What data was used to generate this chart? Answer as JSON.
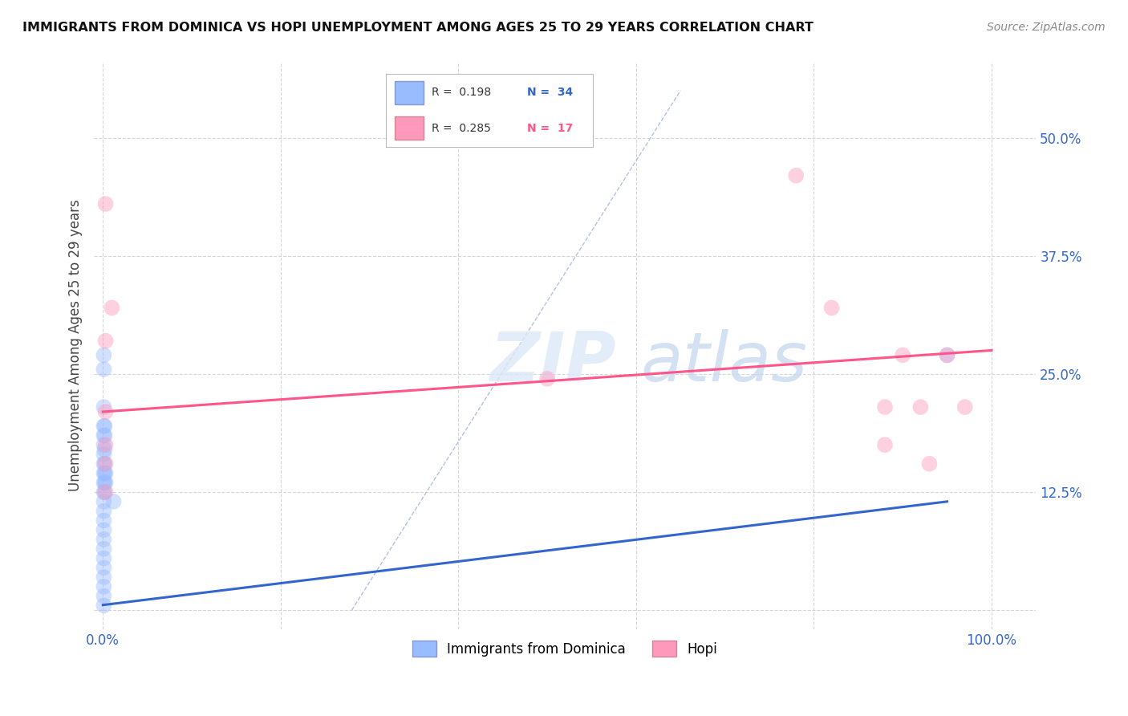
{
  "title": "IMMIGRANTS FROM DOMINICA VS HOPI UNEMPLOYMENT AMONG AGES 25 TO 29 YEARS CORRELATION CHART",
  "source": "Source: ZipAtlas.com",
  "ylabel": "Unemployment Among Ages 25 to 29 years",
  "ytick_values": [
    0.0,
    0.125,
    0.25,
    0.375,
    0.5
  ],
  "ytick_labels": [
    "",
    "12.5%",
    "25.0%",
    "37.5%",
    "50.0%"
  ],
  "xtick_values": [
    0.0,
    0.2,
    0.4,
    0.6,
    0.8,
    1.0
  ],
  "xtick_labels": [
    "0.0%",
    "",
    "",
    "",
    "",
    "100.0%"
  ],
  "xlim": [
    -0.01,
    1.05
  ],
  "ylim": [
    -0.02,
    0.58
  ],
  "background_color": "#ffffff",
  "grid_color": "#cccccc",
  "watermark_text": "ZIPatlas",
  "watermark_color": "#dce8f5",
  "dominica_points": [
    [
      0.001,
      0.27
    ],
    [
      0.001,
      0.255
    ],
    [
      0.001,
      0.215
    ],
    [
      0.001,
      0.195
    ],
    [
      0.001,
      0.185
    ],
    [
      0.001,
      0.175
    ],
    [
      0.001,
      0.165
    ],
    [
      0.002,
      0.195
    ],
    [
      0.002,
      0.185
    ],
    [
      0.002,
      0.17
    ],
    [
      0.001,
      0.155
    ],
    [
      0.001,
      0.145
    ],
    [
      0.001,
      0.135
    ],
    [
      0.001,
      0.125
    ],
    [
      0.001,
      0.115
    ],
    [
      0.001,
      0.105
    ],
    [
      0.001,
      0.095
    ],
    [
      0.001,
      0.085
    ],
    [
      0.001,
      0.075
    ],
    [
      0.001,
      0.065
    ],
    [
      0.001,
      0.055
    ],
    [
      0.001,
      0.045
    ],
    [
      0.001,
      0.035
    ],
    [
      0.001,
      0.025
    ],
    [
      0.001,
      0.015
    ],
    [
      0.001,
      0.005
    ],
    [
      0.002,
      0.155
    ],
    [
      0.002,
      0.145
    ],
    [
      0.002,
      0.135
    ],
    [
      0.002,
      0.125
    ],
    [
      0.003,
      0.145
    ],
    [
      0.003,
      0.135
    ],
    [
      0.012,
      0.115
    ],
    [
      0.95,
      0.27
    ]
  ],
  "hopi_points": [
    [
      0.003,
      0.43
    ],
    [
      0.01,
      0.32
    ],
    [
      0.003,
      0.285
    ],
    [
      0.003,
      0.21
    ],
    [
      0.003,
      0.175
    ],
    [
      0.003,
      0.155
    ],
    [
      0.003,
      0.125
    ],
    [
      0.5,
      0.245
    ],
    [
      0.78,
      0.46
    ],
    [
      0.82,
      0.32
    ],
    [
      0.88,
      0.215
    ],
    [
      0.88,
      0.175
    ],
    [
      0.9,
      0.27
    ],
    [
      0.92,
      0.215
    ],
    [
      0.93,
      0.155
    ],
    [
      0.95,
      0.27
    ],
    [
      0.97,
      0.215
    ]
  ],
  "dominica_color": "#99bbff",
  "hopi_color": "#ff99bb",
  "dominica_trend_color": "#3366cc",
  "hopi_trend_color": "#ff5588",
  "diagonal_color": "#aabbdd",
  "dot_size": 200,
  "dot_alpha": 0.45,
  "trend_linewidth": 2.2,
  "diagonal_linewidth": 1.0,
  "dominica_trend_manual": [
    0.0,
    0.0055,
    0.95,
    0.115
  ],
  "hopi_trend_manual": [
    0.0,
    0.21,
    1.0,
    0.275
  ],
  "legend_R1": "R =  0.198",
  "legend_N1": "N =  34",
  "legend_R2": "R =  0.285",
  "legend_N2": "N =  17",
  "legend_color1": "#99bbff",
  "legend_color2": "#ff99bb",
  "legend_border": "#bbbbbb",
  "text_blue": "#3366cc",
  "text_pink": "#ff5588",
  "axis_label_color": "#444444",
  "tick_color": "#3366cc",
  "bottom_legend_label1": "Immigrants from Dominica",
  "bottom_legend_label2": "Hopi"
}
